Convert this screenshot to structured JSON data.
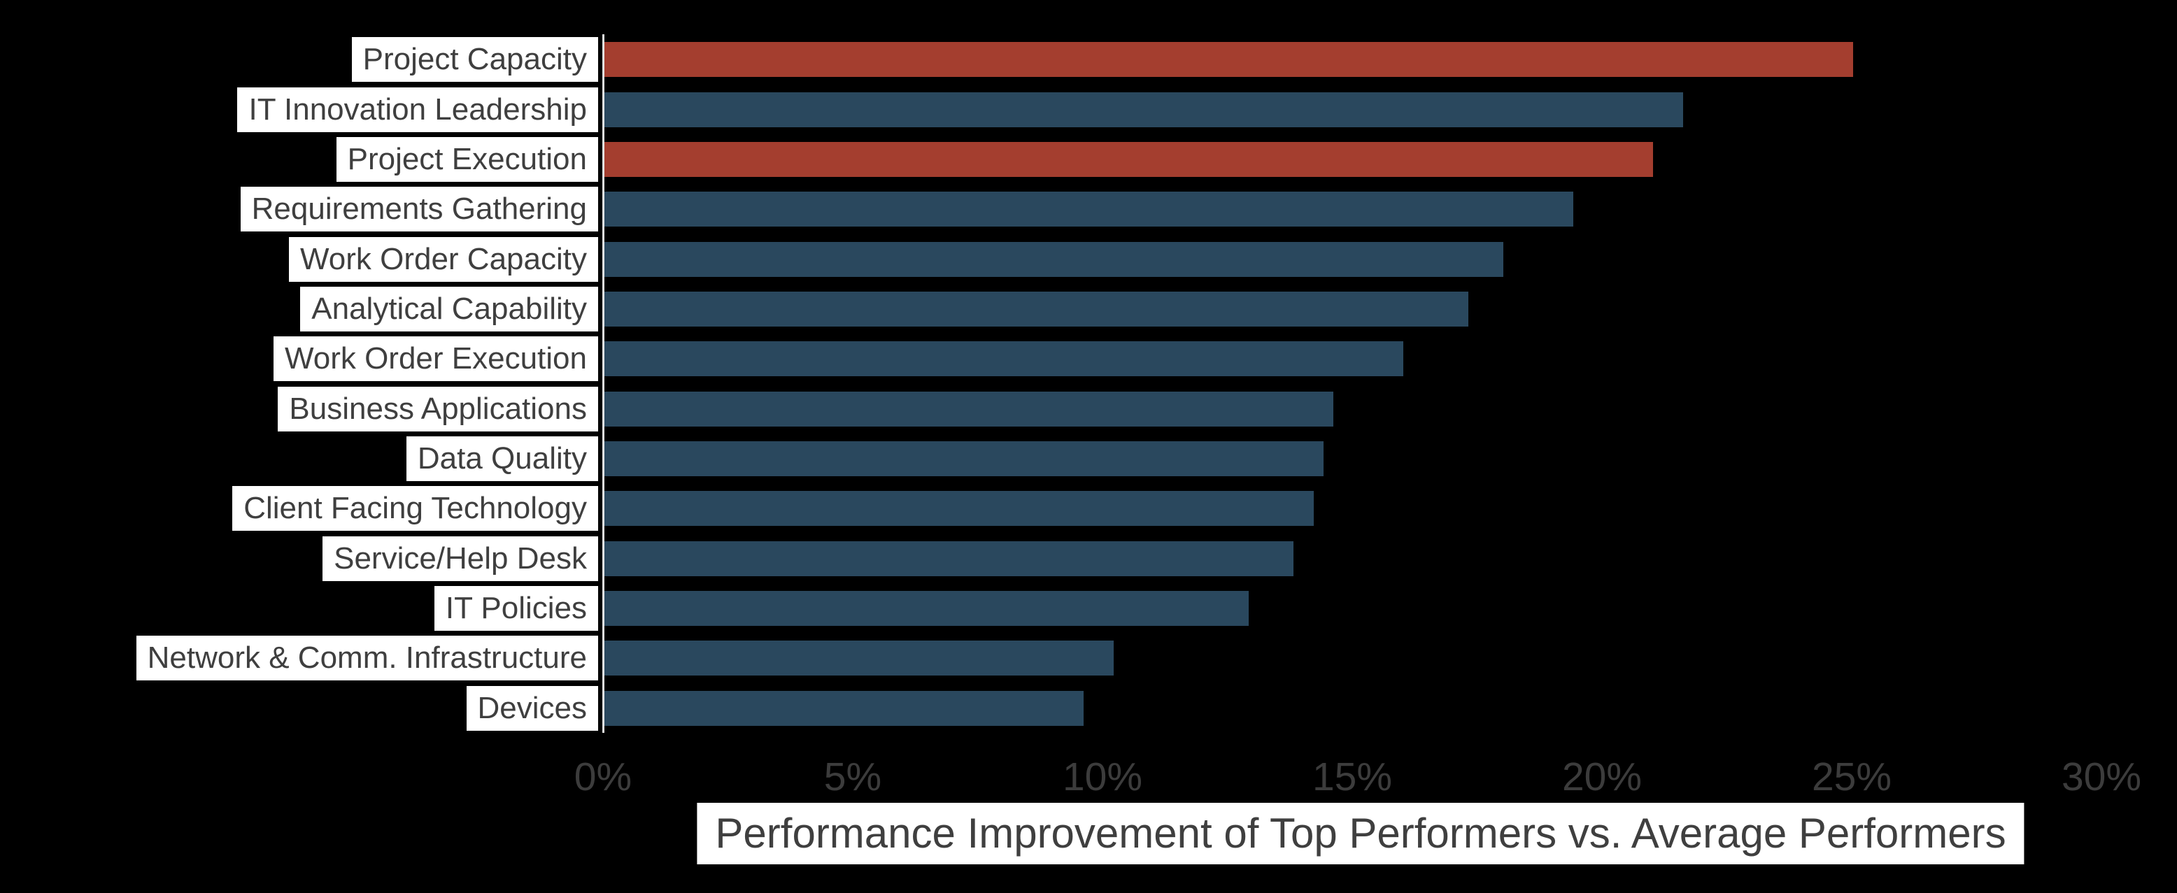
{
  "chart_data": {
    "type": "bar",
    "orientation": "horizontal",
    "title": "",
    "xlabel": "Performance Improvement of Top Performers vs. Average Performers",
    "ylabel": "",
    "categories": [
      "Project Capacity",
      "IT Innovation Leadership",
      "Project Execution",
      "Requirements Gathering",
      "Work Order Capacity",
      "Analytical Capability",
      "Work Order Execution",
      "Business Applications",
      "Data Quality",
      "Client Facing Technology",
      "Service/Help Desk",
      "IT Policies",
      "Network & Comm. Infrastructure",
      "Devices"
    ],
    "values": [
      25.0,
      21.6,
      21.0,
      19.4,
      18.0,
      17.3,
      16.0,
      14.6,
      14.4,
      14.2,
      13.8,
      12.9,
      10.2,
      9.6
    ],
    "unit": "%",
    "bar_colors": [
      "#A43E2F",
      "#2A485E",
      "#A43E2F",
      "#2A485E",
      "#2A485E",
      "#2A485E",
      "#2A485E",
      "#2A485E",
      "#2A485E",
      "#2A485E",
      "#2A485E",
      "#2A485E",
      "#2A485E",
      "#2A485E"
    ],
    "highlighted_categories": [
      "Project Capacity",
      "Project Execution"
    ],
    "x_ticks": [
      "0%",
      "5%",
      "10%",
      "15%",
      "20%",
      "25%",
      "30%"
    ],
    "x_tick_values": [
      0,
      5,
      10,
      15,
      20,
      25,
      30
    ],
    "xlim": [
      0,
      30
    ],
    "grid": false,
    "legend_position": "none"
  },
  "colors": {
    "background": "#000000",
    "bar_default": "#2A485E",
    "bar_highlight": "#A43E2F",
    "axis_line": "#E2E2E2",
    "label_background": "#FFFFFF",
    "label_text": "#3F3F3F",
    "tick_text": "#3C3C3C"
  }
}
